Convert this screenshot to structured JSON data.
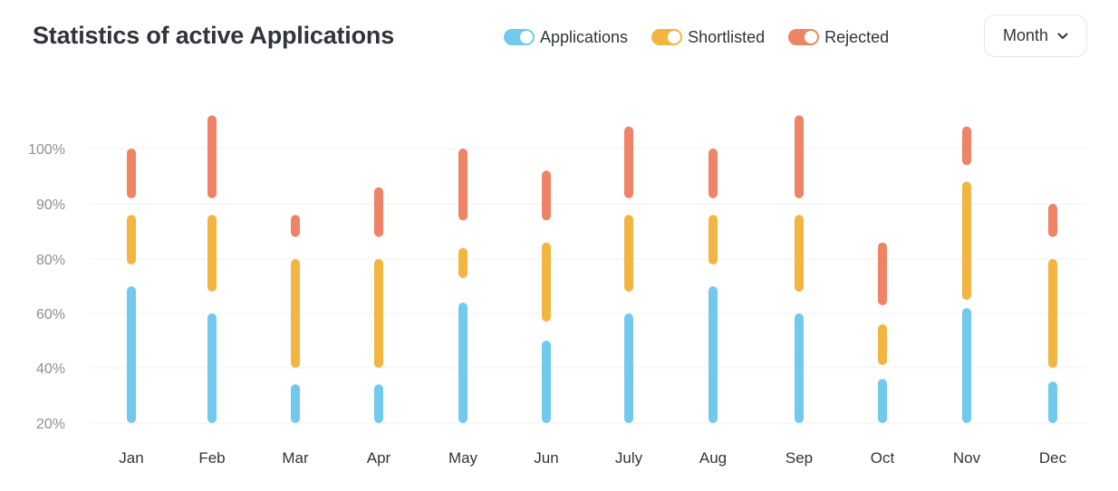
{
  "header": {
    "title": "Statistics of active Applications",
    "period_label": "Month"
  },
  "legend": [
    {
      "label": "Applications",
      "color": "#72c9ee",
      "enabled": true
    },
    {
      "label": "Shortlisted",
      "color": "#f2b542",
      "enabled": true
    },
    {
      "label": "Rejected",
      "color": "#ee8465",
      "enabled": true
    }
  ],
  "icons": {
    "dropdown": "chevron-down-icon"
  },
  "chart_data": {
    "type": "bar",
    "title": "Statistics of active Applications",
    "categories": [
      "Jan",
      "Feb",
      "Mar",
      "Apr",
      "May",
      "Jun",
      "July",
      "Aug",
      "Sep",
      "Oct",
      "Nov",
      "Dec"
    ],
    "y_ticks": [
      "20%",
      "40%",
      "60%",
      "80%",
      "90%",
      "100%"
    ],
    "y_tick_values": [
      20,
      40,
      60,
      80,
      90,
      100
    ],
    "grid": true,
    "legend_position": "top",
    "series": [
      {
        "name": "Applications",
        "color": "#72c9ee",
        "ranges": [
          [
            20,
            70
          ],
          [
            20,
            60
          ],
          [
            20,
            34
          ],
          [
            20,
            34
          ],
          [
            20,
            64
          ],
          [
            20,
            50
          ],
          [
            20,
            60
          ],
          [
            20,
            70
          ],
          [
            20,
            60
          ],
          [
            20,
            36
          ],
          [
            20,
            62
          ],
          [
            20,
            35
          ]
        ]
      },
      {
        "name": "Shortlisted",
        "color": "#f2b542",
        "ranges": [
          [
            78,
            88
          ],
          [
            68,
            88
          ],
          [
            40,
            80
          ],
          [
            40,
            80
          ],
          [
            73,
            82
          ],
          [
            57,
            83
          ],
          [
            68,
            88
          ],
          [
            78,
            88
          ],
          [
            68,
            88
          ],
          [
            41,
            56
          ],
          [
            65,
            94
          ],
          [
            40,
            80
          ]
        ]
      },
      {
        "name": "Rejected",
        "color": "#ee8465",
        "ranges": [
          [
            91,
            100
          ],
          [
            91,
            106
          ],
          [
            84,
            88
          ],
          [
            84,
            93
          ],
          [
            87,
            100
          ],
          [
            87,
            96
          ],
          [
            91,
            104
          ],
          [
            91,
            100
          ],
          [
            91,
            106
          ],
          [
            63,
            83
          ],
          [
            97,
            104
          ],
          [
            84,
            90
          ]
        ]
      }
    ]
  }
}
